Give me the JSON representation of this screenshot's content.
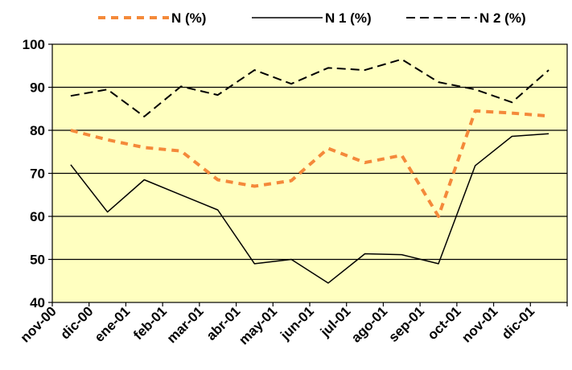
{
  "chart_data": {
    "type": "line",
    "categories": [
      "nov-00",
      "dic-00",
      "ene-01",
      "feb-01",
      "mar-01",
      "abr-01",
      "may-01",
      "jun-01",
      "jul-01",
      "ago-01",
      "sep-01",
      "oct-01",
      "nov-01",
      "dic-01"
    ],
    "ylim": [
      40,
      100
    ],
    "yticks": [
      40,
      50,
      60,
      70,
      80,
      90,
      100
    ],
    "grid": true,
    "plot_background": "#FFFFC0",
    "legend_position": "top",
    "series": [
      {
        "name": "N (%)",
        "color": "#F4893A",
        "style": "dashed-thick",
        "values": [
          80,
          77.8,
          76,
          75.2,
          68.5,
          67,
          68.3,
          75.8,
          72.5,
          74.2,
          60,
          84.5,
          84,
          83.3
        ]
      },
      {
        "name": "N 1 (%)",
        "color": "#000000",
        "style": "solid",
        "values": [
          72,
          61,
          68.5,
          65,
          61.5,
          49,
          50,
          44.5,
          51.3,
          51.1,
          49,
          71.8,
          78.6,
          79.2
        ]
      },
      {
        "name": "N 2 (%)",
        "color": "#000000",
        "style": "dashed",
        "values": [
          88,
          89.5,
          83.2,
          90.2,
          88.2,
          94,
          90.8,
          94.5,
          94,
          96.5,
          91.2,
          89.5,
          86.5,
          94
        ]
      }
    ]
  }
}
